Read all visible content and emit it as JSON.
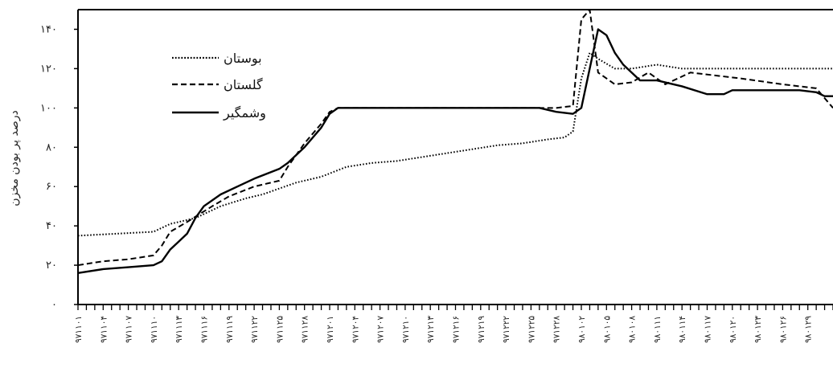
{
  "chart_data": {
    "type": "line",
    "title": "",
    "ylabel": "درصد پر بودن مخزن",
    "xlabel": "",
    "ylim": [
      0,
      150
    ],
    "yticks": [
      0,
      20,
      40,
      60,
      80,
      100,
      120,
      140
    ],
    "ytick_labels": [
      "۰",
      "۲۰",
      "۴۰",
      "۶۰",
      "۸۰",
      "۱۰۰",
      "۱۲۰",
      "۱۴۰"
    ],
    "xtick_labels": [
      "۹۷۱۱۰۱",
      "۹۷۱۱۰۴",
      "۹۷۱۱۰۷",
      "۹۷۱۱۱۰",
      "۹۷۱۱۱۳",
      "۹۷۱۱۱۶",
      "۹۷۱۱۱۹",
      "۹۷۱۱۲۲",
      "۹۷۱۱۲۵",
      "۹۷۱۱۲۸",
      "۹۷۱۲۰۱",
      "۹۷۱۲۰۴",
      "۹۷۱۲۰۷",
      "۹۷۱۲۱۰",
      "۹۷۱۲۱۳",
      "۹۷۱۲۱۶",
      "۹۷۱۲۱۹",
      "۹۷۱۲۲۲",
      "۹۷۱۲۲۵",
      "۹۷۱۲۲۸",
      "۹۸۰۱۰۲",
      "۹۸۰۱۰۵",
      "۹۸۰۱۰۸",
      "۹۸۰۱۱۱",
      "۹۸۰۱۱۴",
      "۹۸۰۱۱۷",
      "۹۸۰۱۲۰",
      "۹۸۰۱۲۳",
      "۹۸۰۱۲۶",
      "۹۸۰۱۲۹"
    ],
    "n_points": 91,
    "grid": false,
    "legend_position": "top-left",
    "series": [
      {
        "name": "بوستان",
        "style": "dotted",
        "color": "#000000",
        "points": [
          [
            0,
            35
          ],
          [
            9,
            37
          ],
          [
            11,
            41
          ],
          [
            14,
            44
          ],
          [
            17,
            50
          ],
          [
            20,
            54
          ],
          [
            22,
            56
          ],
          [
            24,
            59
          ],
          [
            26,
            62
          ],
          [
            29,
            65
          ],
          [
            32,
            70
          ],
          [
            35,
            72
          ],
          [
            38,
            73
          ],
          [
            41,
            75
          ],
          [
            44,
            77
          ],
          [
            47,
            79
          ],
          [
            50,
            81
          ],
          [
            53,
            82
          ],
          [
            56,
            84
          ],
          [
            58,
            85
          ],
          [
            59,
            88
          ],
          [
            60,
            115
          ],
          [
            61,
            128
          ],
          [
            62,
            125
          ],
          [
            64,
            120
          ],
          [
            66,
            120
          ],
          [
            69,
            122
          ],
          [
            72,
            120
          ],
          [
            81,
            120
          ],
          [
            90,
            120
          ]
        ]
      },
      {
        "name": "گلستان",
        "style": "dashed",
        "color": "#000000",
        "points": [
          [
            0,
            20
          ],
          [
            3,
            22
          ],
          [
            6,
            23
          ],
          [
            9,
            25
          ],
          [
            10,
            30
          ],
          [
            11,
            37
          ],
          [
            13,
            42
          ],
          [
            16,
            50
          ],
          [
            18,
            55
          ],
          [
            21,
            60
          ],
          [
            24,
            63
          ],
          [
            25,
            70
          ],
          [
            27,
            82
          ],
          [
            29,
            92
          ],
          [
            30,
            98
          ],
          [
            31,
            100
          ],
          [
            55,
            100
          ],
          [
            57,
            100
          ],
          [
            59,
            101
          ],
          [
            60,
            145
          ],
          [
            61,
            150
          ],
          [
            62,
            118
          ],
          [
            64,
            112
          ],
          [
            66,
            113
          ],
          [
            68,
            118
          ],
          [
            70,
            112
          ],
          [
            73,
            118
          ],
          [
            79,
            115
          ],
          [
            84,
            112
          ],
          [
            88,
            110
          ],
          [
            89,
            105
          ],
          [
            90,
            100
          ]
        ]
      },
      {
        "name": "وشمگیر",
        "style": "solid",
        "color": "#000000",
        "points": [
          [
            0,
            16
          ],
          [
            3,
            18
          ],
          [
            6,
            19
          ],
          [
            9,
            20
          ],
          [
            10,
            22
          ],
          [
            11,
            28
          ],
          [
            12,
            32
          ],
          [
            13,
            36
          ],
          [
            14,
            44
          ],
          [
            15,
            50
          ],
          [
            17,
            56
          ],
          [
            19,
            60
          ],
          [
            21,
            64
          ],
          [
            24,
            69
          ],
          [
            25,
            72
          ],
          [
            27,
            80
          ],
          [
            29,
            90
          ],
          [
            30,
            97
          ],
          [
            31,
            100
          ],
          [
            55,
            100
          ],
          [
            57,
            98
          ],
          [
            59,
            97
          ],
          [
            60,
            100
          ],
          [
            61,
            120
          ],
          [
            62,
            140
          ],
          [
            63,
            137
          ],
          [
            64,
            128
          ],
          [
            65,
            122
          ],
          [
            67,
            114
          ],
          [
            69,
            114
          ],
          [
            72,
            111
          ],
          [
            75,
            107
          ],
          [
            77,
            107
          ],
          [
            78,
            109
          ],
          [
            86,
            109
          ],
          [
            88,
            108
          ],
          [
            89,
            106
          ],
          [
            90,
            106
          ]
        ]
      }
    ]
  }
}
